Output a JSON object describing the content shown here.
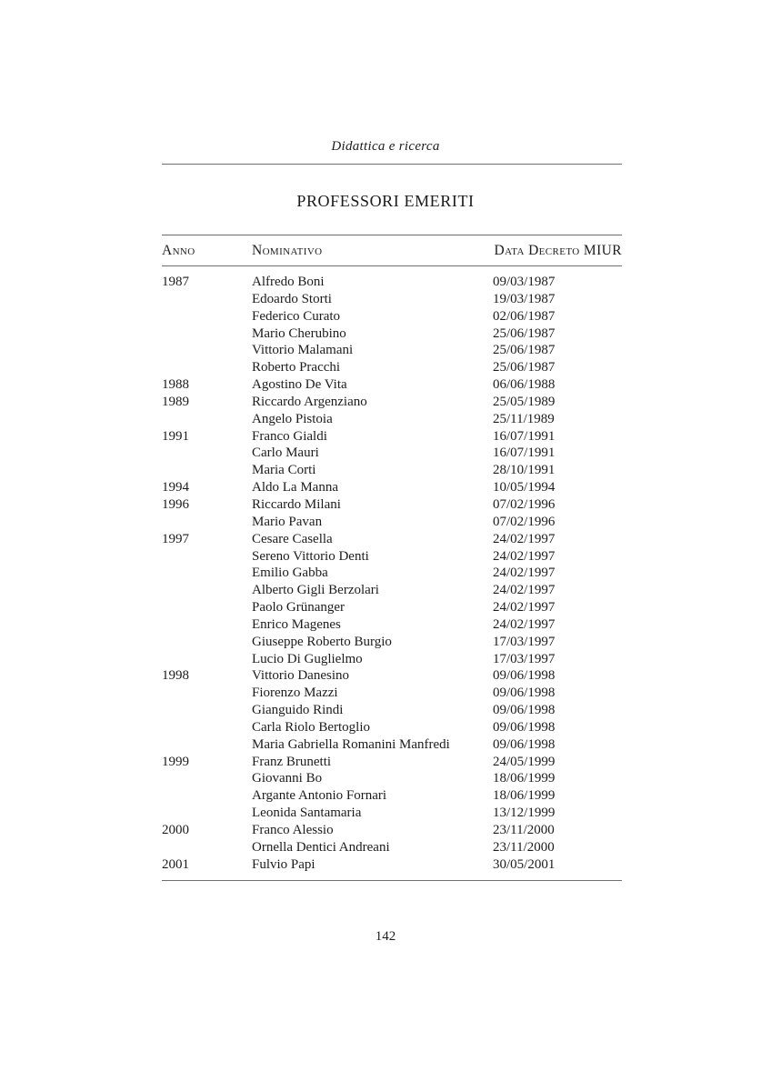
{
  "header": {
    "running_title": "Didattica e ricerca"
  },
  "title": "PROFESSORI EMERITI",
  "table": {
    "columns": [
      "Anno",
      "Nominativo",
      "Data Decreto MIUR"
    ],
    "rows": [
      {
        "year": "1987",
        "name": "Alfredo Boni",
        "date": "09/03/1987"
      },
      {
        "year": "",
        "name": "Edoardo Storti",
        "date": "19/03/1987"
      },
      {
        "year": "",
        "name": "Federico Curato",
        "date": "02/06/1987"
      },
      {
        "year": "",
        "name": "Mario Cherubino",
        "date": "25/06/1987"
      },
      {
        "year": "",
        "name": "Vittorio Malamani",
        "date": "25/06/1987"
      },
      {
        "year": "",
        "name": "Roberto Pracchi",
        "date": "25/06/1987"
      },
      {
        "year": "1988",
        "name": "Agostino De Vita",
        "date": "06/06/1988"
      },
      {
        "year": "1989",
        "name": "Riccardo Argenziano",
        "date": "25/05/1989"
      },
      {
        "year": "",
        "name": "Angelo Pistoia",
        "date": "25/11/1989"
      },
      {
        "year": "1991",
        "name": "Franco Gialdi",
        "date": "16/07/1991"
      },
      {
        "year": "",
        "name": "Carlo Mauri",
        "date": "16/07/1991"
      },
      {
        "year": "",
        "name": "Maria Corti",
        "date": "28/10/1991"
      },
      {
        "year": "1994",
        "name": "Aldo La Manna",
        "date": "10/05/1994"
      },
      {
        "year": "1996",
        "name": "Riccardo Milani",
        "date": "07/02/1996"
      },
      {
        "year": "",
        "name": "Mario Pavan",
        "date": "07/02/1996"
      },
      {
        "year": "1997",
        "name": "Cesare Casella",
        "date": "24/02/1997"
      },
      {
        "year": "",
        "name": "Sereno Vittorio Denti",
        "date": "24/02/1997"
      },
      {
        "year": "",
        "name": "Emilio Gabba",
        "date": "24/02/1997"
      },
      {
        "year": "",
        "name": "Alberto Gigli Berzolari",
        "date": "24/02/1997"
      },
      {
        "year": "",
        "name": "Paolo Grünanger",
        "date": "24/02/1997"
      },
      {
        "year": "",
        "name": "Enrico Magenes",
        "date": "24/02/1997"
      },
      {
        "year": "",
        "name": "Giuseppe Roberto Burgio",
        "date": "17/03/1997"
      },
      {
        "year": "",
        "name": "Lucio Di Guglielmo",
        "date": "17/03/1997"
      },
      {
        "year": "1998",
        "name": "Vittorio Danesino",
        "date": "09/06/1998"
      },
      {
        "year": "",
        "name": "Fiorenzo Mazzi",
        "date": "09/06/1998"
      },
      {
        "year": "",
        "name": "Gianguido Rindi",
        "date": "09/06/1998"
      },
      {
        "year": "",
        "name": "Carla Riolo Bertoglio",
        "date": "09/06/1998"
      },
      {
        "year": "",
        "name": "Maria Gabriella Romanini Manfredi",
        "date": "09/06/1998"
      },
      {
        "year": "1999",
        "name": "Franz Brunetti",
        "date": "24/05/1999"
      },
      {
        "year": "",
        "name": "Giovanni Bo",
        "date": "18/06/1999"
      },
      {
        "year": "",
        "name": "Argante Antonio Fornari",
        "date": "18/06/1999"
      },
      {
        "year": "",
        "name": "Leonida Santamaria",
        "date": "13/12/1999"
      },
      {
        "year": "2000",
        "name": "Franco Alessio",
        "date": "23/11/2000"
      },
      {
        "year": "",
        "name": "Ornella Dentici Andreani",
        "date": "23/11/2000"
      },
      {
        "year": "2001",
        "name": "Fulvio Papi",
        "date": "30/05/2001"
      }
    ]
  },
  "footer": {
    "page_number": "142"
  },
  "colors": {
    "background": "#ffffff",
    "text": "#1c1c1c",
    "rule": "#6e6e6e"
  }
}
